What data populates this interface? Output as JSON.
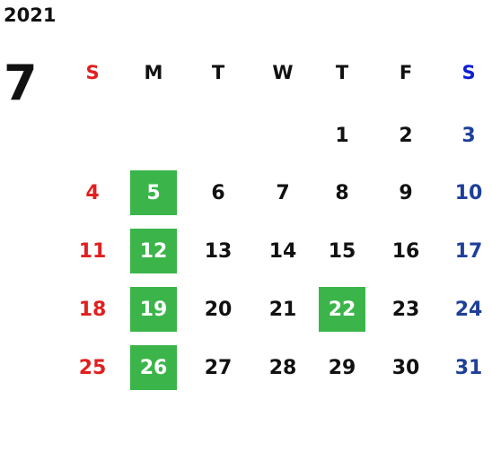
{
  "year": "2021",
  "month": "7",
  "weekdays": [
    "S",
    "M",
    "T",
    "W",
    "T",
    "F",
    "S"
  ],
  "weeks": [
    [
      "",
      "",
      "",
      "",
      "1",
      "2",
      "3"
    ],
    [
      "4",
      "5",
      "6",
      "7",
      "8",
      "9",
      "10"
    ],
    [
      "11",
      "12",
      "13",
      "14",
      "15",
      "16",
      "17"
    ],
    [
      "18",
      "19",
      "20",
      "21",
      "22",
      "23",
      "24"
    ],
    [
      "25",
      "26",
      "27",
      "28",
      "29",
      "30",
      "31"
    ]
  ],
  "highlighted_days": [
    "5",
    "12",
    "19",
    "22",
    "26"
  ],
  "colors": {
    "sunday": "#e02020",
    "saturday": "#1e3f99",
    "saturday_header": "#0a1fd6",
    "highlight": "#3bb54a",
    "text": "#111111"
  }
}
